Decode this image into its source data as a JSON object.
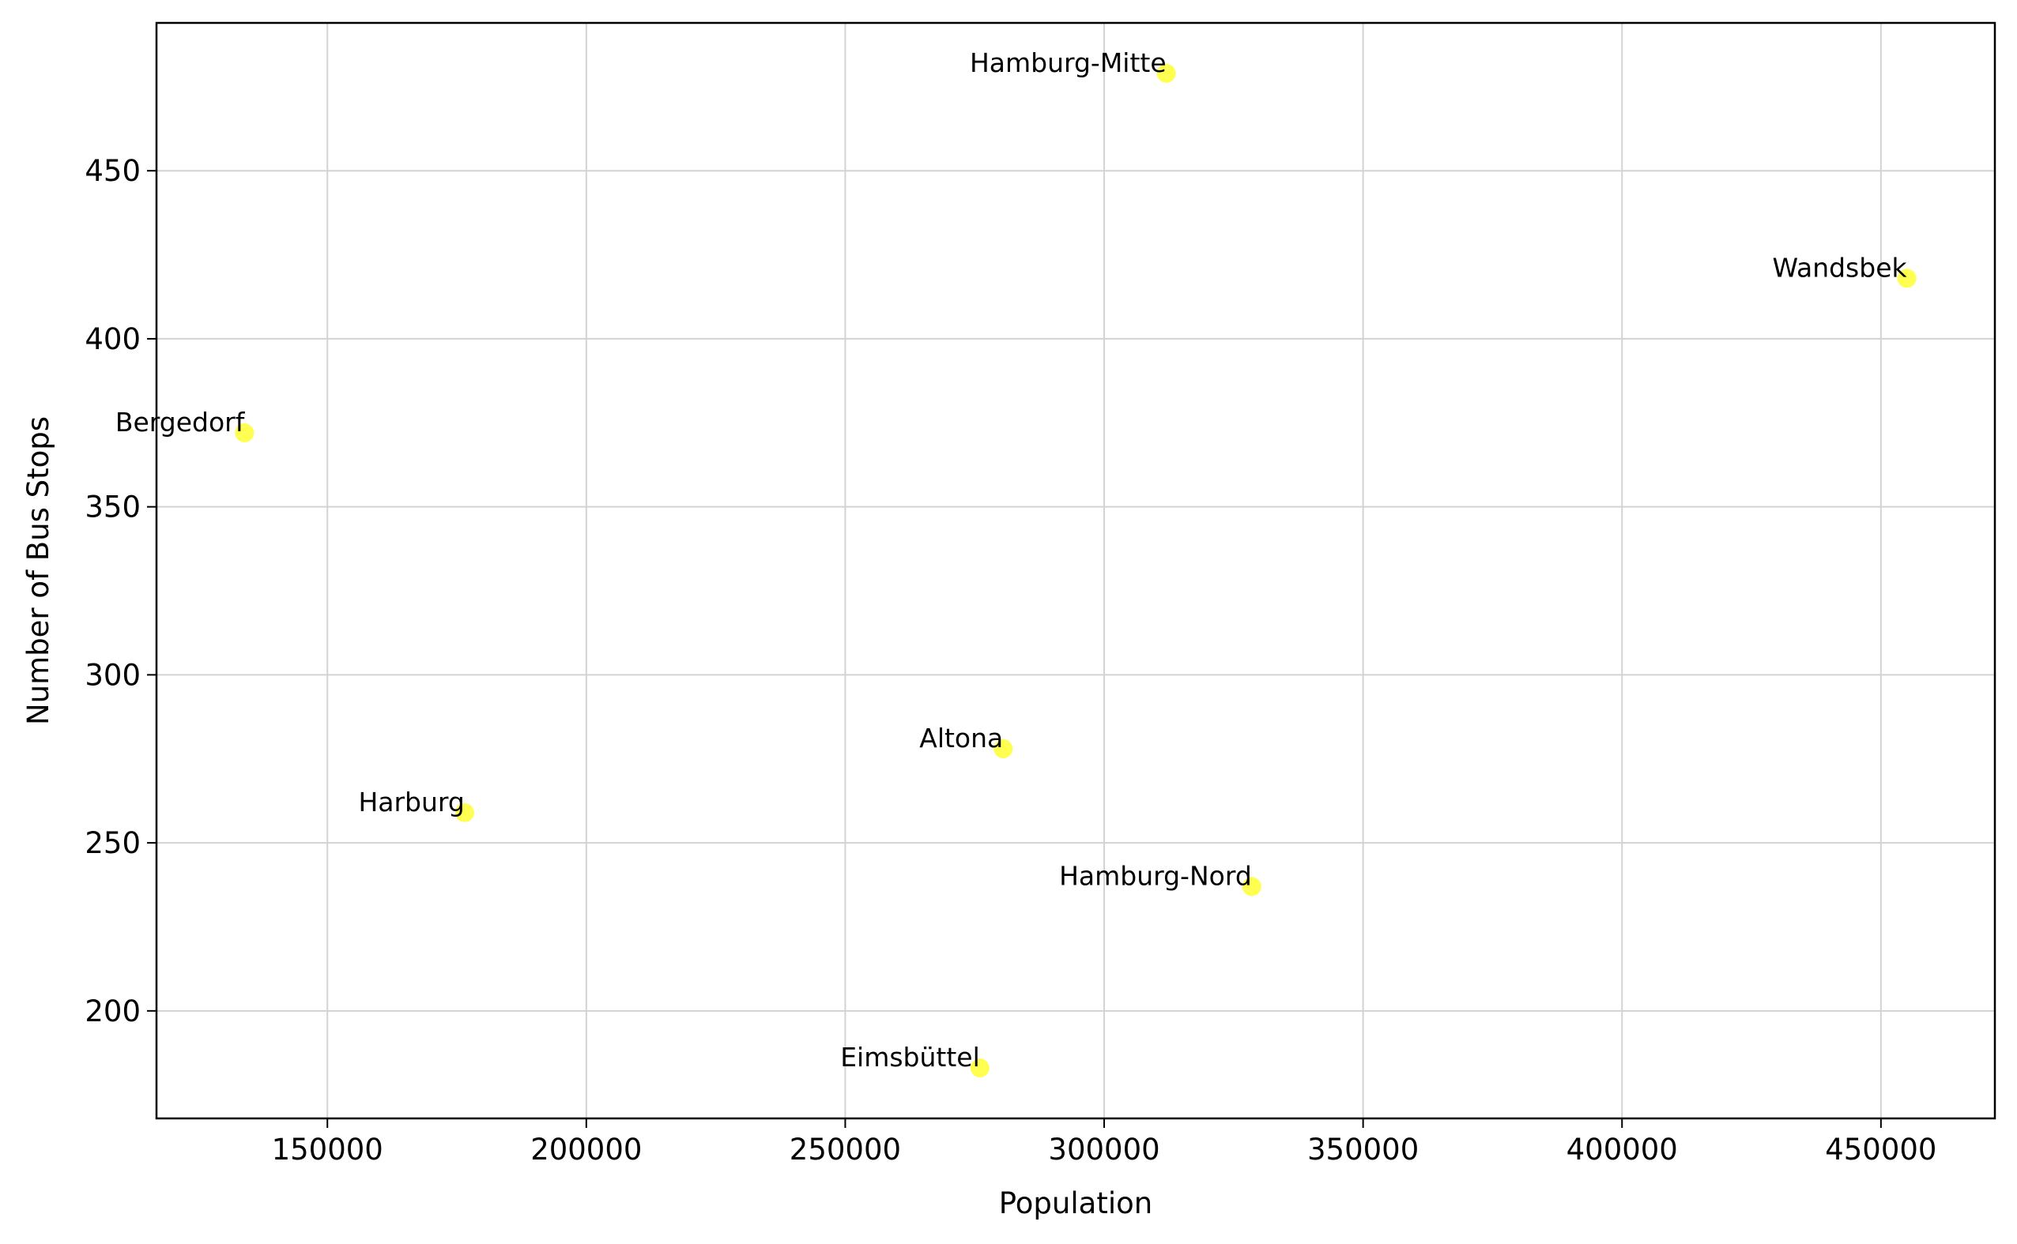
{
  "chart_data": {
    "type": "scatter",
    "title": "",
    "xlabel": "Population",
    "ylabel": "Number of Bus Stops",
    "xlim": [
      117000,
      472000
    ],
    "ylim": [
      168,
      494
    ],
    "xticks": [
      150000,
      200000,
      250000,
      300000,
      350000,
      400000,
      450000
    ],
    "xtick_labels": [
      "150000",
      "200000",
      "250000",
      "300000",
      "350000",
      "400000",
      "450000"
    ],
    "yticks": [
      200,
      250,
      300,
      350,
      400,
      450
    ],
    "ytick_labels": [
      "200",
      "250",
      "300",
      "350",
      "400",
      "450"
    ],
    "grid": true,
    "marker_color": "#ffff33",
    "points": [
      {
        "label": "Hamburg-Mitte",
        "x": 312000,
        "y": 479
      },
      {
        "label": "Wandsbek",
        "x": 455000,
        "y": 418
      },
      {
        "label": "Bergedorf",
        "x": 134000,
        "y": 372
      },
      {
        "label": "Altona",
        "x": 280500,
        "y": 278
      },
      {
        "label": "Harburg",
        "x": 176500,
        "y": 259
      },
      {
        "label": "Hamburg-Nord",
        "x": 328500,
        "y": 237
      },
      {
        "label": "Eimsbüttel",
        "x": 276000,
        "y": 183
      }
    ]
  }
}
